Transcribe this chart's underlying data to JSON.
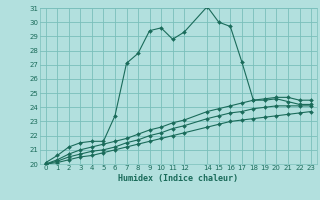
{
  "xlabel": "Humidex (Indice chaleur)",
  "bg_color": "#b2e0de",
  "grid_color": "#7abfbb",
  "line_color": "#1a6b5a",
  "xlim": [
    -0.5,
    23.5
  ],
  "ylim": [
    20,
    31
  ],
  "xticks": [
    0,
    1,
    2,
    3,
    4,
    5,
    6,
    7,
    8,
    9,
    10,
    11,
    12,
    14,
    15,
    16,
    17,
    18,
    19,
    20,
    21,
    22,
    23
  ],
  "yticks": [
    20,
    21,
    22,
    23,
    24,
    25,
    26,
    27,
    28,
    29,
    30,
    31
  ],
  "line1_x": [
    0,
    1,
    2,
    3,
    4,
    5,
    6,
    7,
    8,
    9,
    10,
    11,
    12,
    14,
    15,
    16,
    17,
    18,
    19,
    20,
    21,
    22,
    23
  ],
  "line1_y": [
    20.1,
    20.6,
    21.2,
    21.5,
    21.6,
    21.6,
    23.4,
    27.1,
    27.8,
    29.4,
    29.6,
    28.8,
    29.3,
    31.1,
    30.0,
    29.7,
    27.2,
    24.5,
    24.5,
    24.6,
    24.4,
    24.2,
    24.2
  ],
  "line2_x": [
    0,
    1,
    2,
    3,
    4,
    5,
    6,
    7,
    8,
    9,
    10,
    11,
    12,
    14,
    15,
    16,
    17,
    18,
    19,
    20,
    21,
    22,
    23
  ],
  "line2_y": [
    20.0,
    20.3,
    20.7,
    21.0,
    21.2,
    21.4,
    21.6,
    21.8,
    22.1,
    22.4,
    22.6,
    22.9,
    23.1,
    23.7,
    23.9,
    24.1,
    24.3,
    24.5,
    24.6,
    24.7,
    24.7,
    24.5,
    24.5
  ],
  "line3_x": [
    0,
    1,
    2,
    3,
    4,
    5,
    6,
    7,
    8,
    9,
    10,
    11,
    12,
    14,
    15,
    16,
    17,
    18,
    19,
    20,
    21,
    22,
    23
  ],
  "line3_y": [
    20.0,
    20.2,
    20.5,
    20.7,
    20.9,
    21.0,
    21.2,
    21.5,
    21.7,
    22.0,
    22.2,
    22.5,
    22.7,
    23.2,
    23.4,
    23.6,
    23.7,
    23.9,
    24.0,
    24.1,
    24.1,
    24.1,
    24.1
  ],
  "line4_x": [
    0,
    1,
    2,
    3,
    4,
    5,
    6,
    7,
    8,
    9,
    10,
    11,
    12,
    14,
    15,
    16,
    17,
    18,
    19,
    20,
    21,
    22,
    23
  ],
  "line4_y": [
    20.0,
    20.1,
    20.3,
    20.5,
    20.6,
    20.8,
    21.0,
    21.2,
    21.4,
    21.6,
    21.8,
    22.0,
    22.2,
    22.6,
    22.8,
    23.0,
    23.1,
    23.2,
    23.3,
    23.4,
    23.5,
    23.6,
    23.7
  ]
}
